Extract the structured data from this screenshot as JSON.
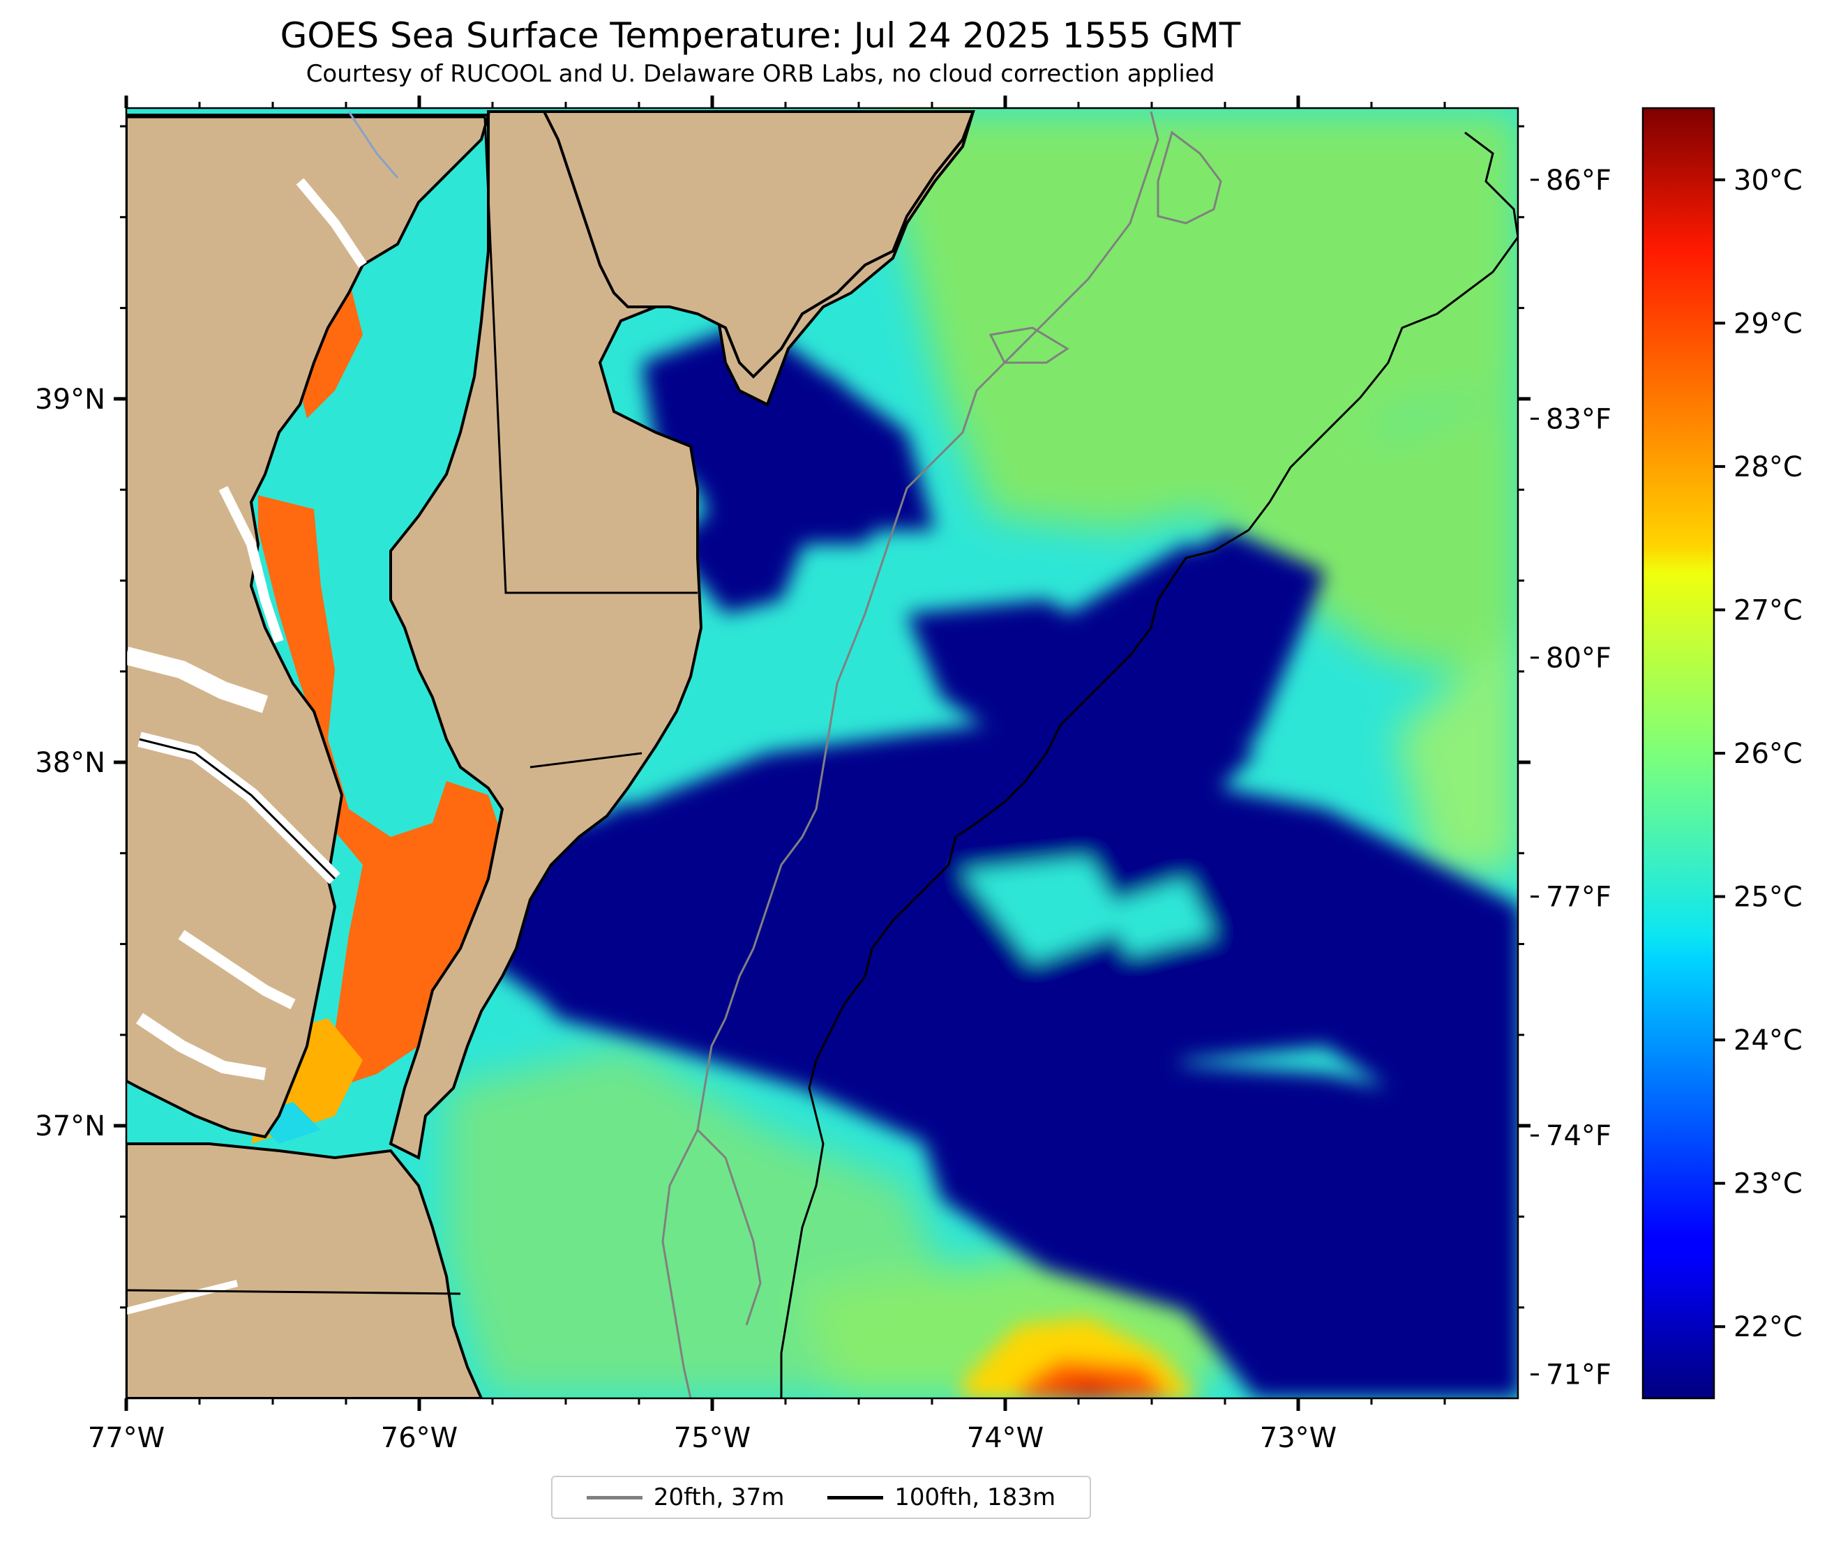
{
  "map": {
    "title": "GOES Sea Surface Temperature: Jul 24 2025 1555 GMT",
    "subtitle": "Courtesy of RUCOOL and U. Delaware ORB Labs, no cloud correction applied",
    "extent": {
      "lon": [
        -77.0,
        -72.25
      ],
      "lat": [
        36.25,
        39.8
      ]
    },
    "x_ticks": [
      {
        "value": -77,
        "label": "77°W"
      },
      {
        "value": -76,
        "label": "76°W"
      },
      {
        "value": -75,
        "label": "75°W"
      },
      {
        "value": -74,
        "label": "74°W"
      },
      {
        "value": -73,
        "label": "73°W"
      }
    ],
    "y_ticks": [
      {
        "value": 39,
        "label": "39°N"
      },
      {
        "value": 38,
        "label": "38°N"
      },
      {
        "value": 37,
        "label": "37°N"
      }
    ],
    "fahrenheit_ticks": [
      {
        "value": 86,
        "label": "86°F"
      },
      {
        "value": 83,
        "label": "83°F"
      },
      {
        "value": 80,
        "label": "80°F"
      },
      {
        "value": 77,
        "label": "77°F"
      },
      {
        "value": 74,
        "label": "74°F"
      },
      {
        "value": 71,
        "label": "71°F"
      }
    ],
    "colorbar": {
      "range_c": [
        21.5,
        30.5
      ],
      "ticks": [
        {
          "value": 30,
          "label": "30°C"
        },
        {
          "value": 29,
          "label": "29°C"
        },
        {
          "value": 28,
          "label": "28°C"
        },
        {
          "value": 27,
          "label": "27°C"
        },
        {
          "value": 26,
          "label": "26°C"
        },
        {
          "value": 25,
          "label": "25°C"
        },
        {
          "value": 24,
          "label": "24°C"
        },
        {
          "value": 23,
          "label": "23°C"
        },
        {
          "value": 22,
          "label": "22°C"
        }
      ],
      "colormap": "jet"
    },
    "legend": [
      {
        "label": "20fth, 37m",
        "color": "#808080"
      },
      {
        "label": "100fth, 183m",
        "color": "#000000"
      }
    ],
    "colors": {
      "land": "#d2b48c",
      "cold": "#00008b",
      "cyan": "#2ee6d6",
      "green": "#7fe86a",
      "warm": "#ff5a00"
    }
  }
}
